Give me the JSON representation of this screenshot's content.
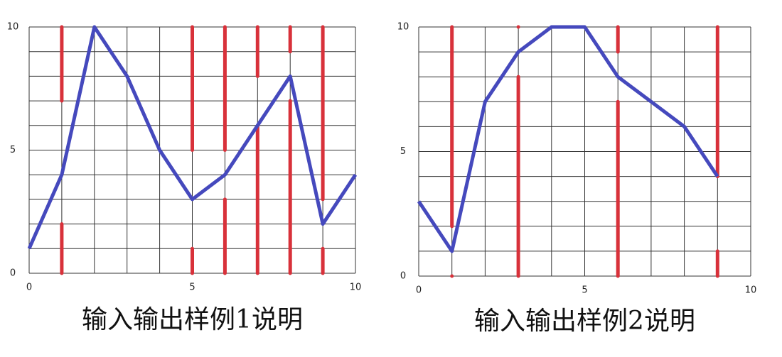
{
  "chart_data": [
    {
      "type": "line",
      "title": "输入输出样例1说明",
      "x": [
        0,
        1,
        2,
        3,
        4,
        5,
        6,
        7,
        8,
        9,
        10
      ],
      "values": [
        1,
        4,
        10,
        8,
        5,
        3,
        4,
        6,
        8,
        2,
        4
      ],
      "color": "#4549bd",
      "segments": {
        "color": "#d8313a",
        "x": [
          1,
          1,
          5,
          5,
          6,
          6,
          7,
          7,
          8,
          8,
          9,
          9
        ],
        "y1": [
          10,
          2,
          10,
          1,
          10,
          3,
          10,
          6,
          10,
          7,
          10,
          1
        ],
        "y2": [
          7,
          0,
          5,
          0,
          5,
          0,
          8,
          0,
          9,
          0,
          3,
          0
        ]
      },
      "xlim": [
        0,
        10
      ],
      "ylim": [
        0,
        10
      ],
      "xticks": [
        0,
        5,
        10
      ],
      "yticks": [
        0,
        5,
        10
      ],
      "xgrid": [
        0,
        1,
        2,
        3,
        4,
        5,
        6,
        7,
        8,
        9,
        10
      ],
      "ygrid": [
        0,
        1,
        2,
        3,
        4,
        5,
        6,
        7,
        8,
        9,
        10
      ]
    },
    {
      "type": "line",
      "title": "输入输出样例2说明",
      "x": [
        0,
        1,
        2,
        3,
        4,
        5,
        6,
        7,
        8,
        9
      ],
      "values": [
        3,
        1,
        7,
        9,
        10,
        10,
        8,
        7,
        6,
        4
      ],
      "color": "#4549bd",
      "segments": {
        "color": "#d8313a",
        "x": [
          1,
          1,
          3,
          3,
          6,
          6,
          9,
          9
        ],
        "y1": [
          10,
          0,
          10,
          8,
          10,
          7,
          10,
          1
        ],
        "y2": [
          2,
          0,
          10,
          0,
          9,
          0,
          4,
          0
        ]
      },
      "xlim": [
        0,
        10
      ],
      "ylim": [
        0,
        10
      ],
      "xticks": [
        0,
        5,
        10
      ],
      "yticks": [
        0,
        5,
        10
      ],
      "xgrid": [
        0,
        1,
        2,
        3,
        4,
        5,
        6,
        7,
        8,
        9,
        10
      ],
      "ygrid": [
        0,
        1,
        2,
        3,
        4,
        5,
        6,
        7,
        8,
        9,
        10
      ]
    }
  ]
}
